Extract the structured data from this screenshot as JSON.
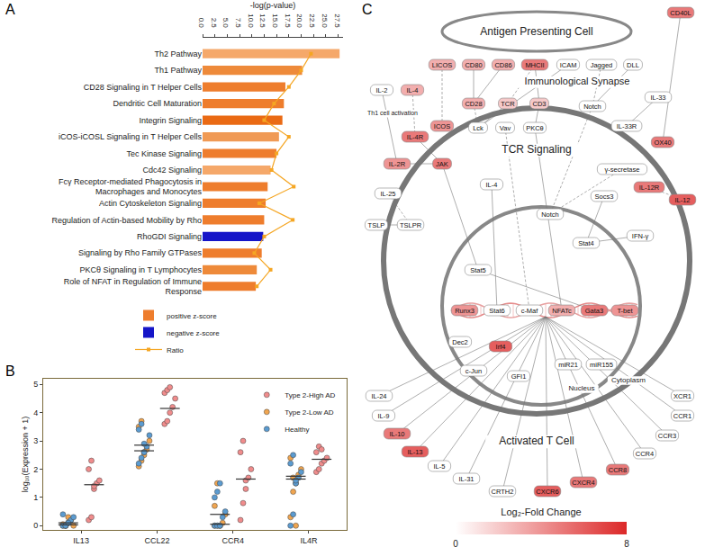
{
  "chart_data": [
    {
      "panel": "A",
      "type": "bar",
      "orientation": "horizontal",
      "grid": false,
      "legend": "bottom",
      "xlabel": "-log(p-value)",
      "categories": [
        "Th2 Pathway",
        "Th1 Pathway",
        "CD28 Signaling in T Helper Cells",
        "Dendritic Cell Maturation",
        "Integrin Signaling",
        "iCOS-iCOSL Signaling in T Helper Cells",
        "Tec Kinase Signaling",
        "Cdc42 Signaling",
        "Fcγ Receptor-mediated Phagocytosis in Macrophages and Monocytes",
        "Actin Cytoskeleton Signaling",
        "Regulation of Actin-based Mobility by Rho",
        "RhoGDI Signaling",
        "Signaling by Rho Family GTPases",
        "PKCθ Signaling in T Lymphocytes",
        "Role of NFAT in Regulation of Immune Response"
      ],
      "values": [
        27.8,
        20.2,
        16.8,
        16.5,
        16.2,
        15.5,
        15.0,
        13.8,
        13.2,
        12.8,
        12.5,
        12.3,
        12.0,
        11.0,
        10.8
      ],
      "colors": [
        "#f5a86a",
        "#ee8a3a",
        "#ee7d2d",
        "#ee7d2d",
        "#ea6a14",
        "#f09a55",
        "#ee7d2d",
        "#f5a86a",
        "#ee7d2d",
        "#ee7d2d",
        "#ee7d2d",
        "#1515c8",
        "#ee7d2d",
        "#ee8a3a",
        "#ee7d2d"
      ],
      "legend_entries": [
        {
          "name": "positive z-score",
          "color": "#ee7d2d"
        },
        {
          "name": "negative z-score",
          "color": "#1515c8"
        }
      ],
      "series": [
        {
          "name": "Ratio",
          "type": "line",
          "marker": "square",
          "color": "#f5a623",
          "values": [
            22.0,
            20.0,
            17.5,
            14.5,
            12.5,
            17.5,
            15.0,
            14.0,
            18.5,
            11.5,
            18.3,
            12.5,
            10.5,
            13.8,
            11.0
          ]
        }
      ],
      "xlim": [
        0,
        28.5
      ],
      "xticks": [
        {
          "value": 0,
          "label": "0.0"
        },
        2.5,
        {
          "value": 5,
          "label": "5.0"
        },
        7.5,
        {
          "value": 10,
          "label": "10.0"
        },
        12.5,
        {
          "value": 15,
          "label": "15.0"
        },
        17.5,
        {
          "value": 20,
          "label": "20.0"
        },
        22.5,
        {
          "value": 25,
          "label": "25.0"
        },
        27.5
      ]
    },
    {
      "panel": "B",
      "type": "scatter",
      "marker": "circle",
      "grid": false,
      "legend": "upper right",
      "ylabel": "log₁₀(Expression + 1)",
      "categories": [
        "IL13",
        "CCL22",
        "CCR4",
        "IL4R"
      ],
      "series": [
        {
          "name": "Type 2-High AD",
          "color": "#f08c8c",
          "values": [
            [
              0.2,
              0.3,
              1.3,
              1.5,
              1.6,
              2.0,
              2.3,
              1.4
            ],
            [
              3.6,
              3.7,
              4.0,
              4.2,
              4.5,
              4.7,
              4.8,
              4.9
            ],
            [
              0.2,
              0.8,
              1.6,
              1.7,
              2.0,
              2.6,
              3.0,
              1.3
            ],
            [
              1.9,
              2.0,
              2.2,
              2.3,
              2.4,
              2.6,
              2.8,
              2.7
            ]
          ],
          "median": [
            1.45,
            4.15,
            1.65,
            2.35
          ]
        },
        {
          "name": "Type 2-Low AD",
          "color": "#f0a550",
          "values": [
            [
              0,
              0,
              0.1,
              0.2,
              0,
              0.05,
              0,
              0.3
            ],
            [
              2.1,
              2.3,
              2.5,
              2.7,
              3.0,
              3.5,
              3.7,
              2.6
            ],
            [
              0,
              0,
              0,
              0.1,
              0.4,
              0.7,
              1.5,
              0
            ],
            [
              0.3,
              1.2,
              1.5,
              1.8,
              2.0,
              2.4,
              1.7,
              0
            ]
          ],
          "median": [
            0.03,
            2.65,
            0.05,
            1.75
          ]
        },
        {
          "name": "Healthy",
          "color": "#5b9bd0",
          "values": [
            [
              0,
              0,
              0.1,
              0.2,
              0.3,
              0.4,
              0,
              0.1
            ],
            [
              2.2,
              2.4,
              2.6,
              2.8,
              3.2,
              3.4,
              3.6,
              2.9
            ],
            [
              0,
              0,
              0,
              0.3,
              0.5,
              1.0,
              1.2,
              1.5
            ],
            [
              0,
              0.4,
              1.5,
              1.7,
              1.9,
              2.2,
              2.5,
              1.6
            ]
          ],
          "median": [
            0.1,
            2.85,
            0.4,
            1.65
          ]
        }
      ],
      "ylim": [
        -0.15,
        5.2
      ],
      "yticks": [
        0,
        1,
        2,
        3,
        4,
        5
      ]
    }
  ],
  "diagram": {
    "panel": "C",
    "labels": {
      "apc": "Antigen Presenting Cell",
      "synapse": "Immunological Synapse",
      "tcr": "TCR Signaling",
      "cell": "Activated T Cell",
      "nucleus": "Nucleus",
      "cytoplasm": "Cytoplasm",
      "th1": "Th1 cell activation"
    },
    "nodes": [
      {
        "label": "CD40L",
        "log2fc": 5
      },
      {
        "label": "IL-2",
        "log2fc": null
      },
      {
        "label": "IL-4",
        "log2fc": 3
      },
      {
        "label": "LICOS",
        "log2fc": 3
      },
      {
        "label": "CD80",
        "log2fc": 3
      },
      {
        "label": "CD86",
        "log2fc": 3
      },
      {
        "label": "MHCII",
        "log2fc": 5
      },
      {
        "label": "ICAM",
        "log2fc": null
      },
      {
        "label": "Jagged",
        "log2fc": null
      },
      {
        "label": "DLL",
        "log2fc": null
      },
      {
        "label": "IL-33",
        "log2fc": null
      },
      {
        "label": "CD28",
        "log2fc": 3
      },
      {
        "label": "TCR",
        "log2fc": 2
      },
      {
        "label": "CD3",
        "log2fc": 2
      },
      {
        "label": "Notch",
        "log2fc": null
      },
      {
        "label": "ICOS",
        "log2fc": 4
      },
      {
        "label": "Lck",
        "log2fc": null
      },
      {
        "label": "Vav",
        "log2fc": null
      },
      {
        "label": "PKCθ",
        "log2fc": null
      },
      {
        "label": "IL-33R",
        "log2fc": null
      },
      {
        "label": "OX40",
        "log2fc": 5
      },
      {
        "label": "IL-4R",
        "log2fc": 5
      },
      {
        "label": "IL-2R",
        "log2fc": 4
      },
      {
        "label": "JAK",
        "log2fc": 5
      },
      {
        "label": "IL-25",
        "log2fc": null
      },
      {
        "label": "TSLP",
        "log2fc": null
      },
      {
        "label": "TSLPR",
        "log2fc": null
      },
      {
        "label": "IL-4",
        "log2fc": null
      },
      {
        "label": "γ-secretase",
        "log2fc": null
      },
      {
        "label": "Notch",
        "log2fc": null
      },
      {
        "label": "Socs3",
        "log2fc": null
      },
      {
        "label": "IL-12R",
        "log2fc": 5
      },
      {
        "label": "IL-12",
        "log2fc": 6
      },
      {
        "label": "IFN-γ",
        "log2fc": null
      },
      {
        "label": "Stat4",
        "log2fc": null
      },
      {
        "label": "Stat5",
        "log2fc": null
      },
      {
        "label": "Runx3",
        "log2fc": 4
      },
      {
        "label": "Stat6",
        "log2fc": null
      },
      {
        "label": "c-Maf",
        "log2fc": null
      },
      {
        "label": "NFATc",
        "log2fc": 3
      },
      {
        "label": "Gata3",
        "log2fc": 5
      },
      {
        "label": "T-bet",
        "log2fc": 4
      },
      {
        "label": "Dec2",
        "log2fc": null
      },
      {
        "label": "Irf4",
        "log2fc": 6
      },
      {
        "label": "c-Jun",
        "log2fc": null
      },
      {
        "label": "GFI1",
        "log2fc": null
      },
      {
        "label": "miR21",
        "log2fc": null
      },
      {
        "label": "miR155",
        "log2fc": null
      },
      {
        "label": "IL-24",
        "log2fc": null
      },
      {
        "label": "IL-9",
        "log2fc": null
      },
      {
        "label": "IL-10",
        "log2fc": 5
      },
      {
        "label": "IL-13",
        "log2fc": 6
      },
      {
        "label": "IL-5",
        "log2fc": null
      },
      {
        "label": "IL-31",
        "log2fc": null
      },
      {
        "label": "CRTH2",
        "log2fc": null
      },
      {
        "label": "CXCR6",
        "log2fc": 6
      },
      {
        "label": "CXCR4",
        "log2fc": 5
      },
      {
        "label": "CCR8",
        "log2fc": 5
      },
      {
        "label": "CCR4",
        "log2fc": null
      },
      {
        "label": "CCR3",
        "log2fc": null
      },
      {
        "label": "CCR1",
        "log2fc": null
      },
      {
        "label": "XCR1",
        "log2fc": null
      }
    ],
    "colorbar": {
      "title": "Log₂-Fold Change",
      "range": [
        0,
        8
      ],
      "ticks": [
        0,
        8
      ],
      "colors": [
        "#ffffff",
        "#dc2828"
      ]
    }
  }
}
